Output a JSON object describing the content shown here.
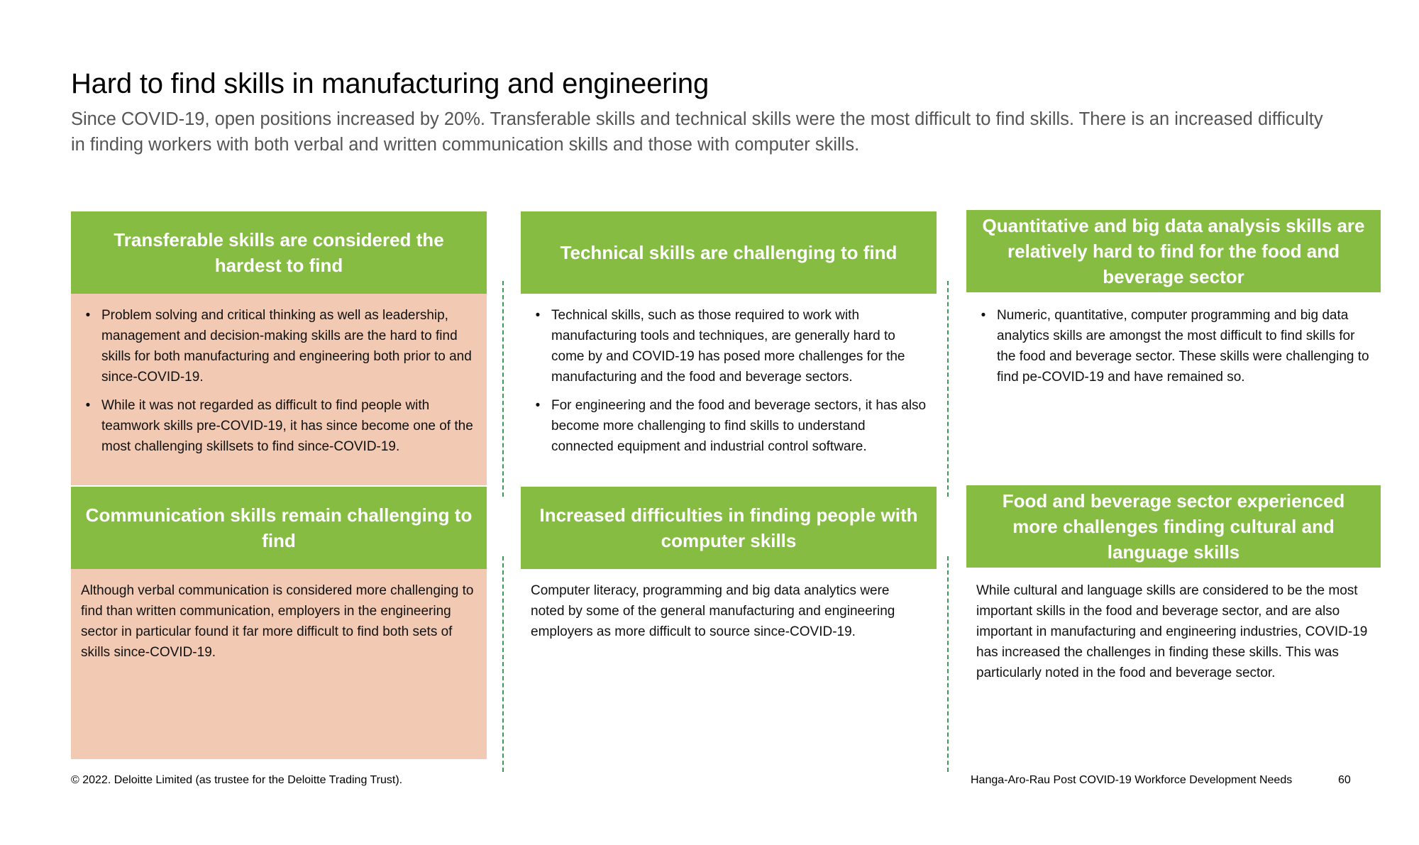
{
  "title": "Hard to find skills in manufacturing and engineering",
  "subtitle": "Since COVID-19, open positions increased by 20%. Transferable skills and technical skills were the most difficult to find skills.  There is an increased difficulty in finding workers with both verbal and written communication skills and those with computer skills.",
  "colors": {
    "header_green": "#86bc42",
    "body_peach": "#f2c9b2",
    "divider_green": "#3d9a56"
  },
  "bullet_glyph": "•",
  "panels": [
    {
      "heading": "Transferable skills are considered the hardest to find",
      "bullets": [
        "Problem solving and critical thinking as well as leadership, management and decision-making skills are the hard to find skills for both manufacturing and engineering both prior to and since-COVID-19.",
        "While it was not regarded as difficult to find people with teamwork skills pre-COVID-19, it has since become one of the most challenging skillsets to find since-COVID-19."
      ]
    },
    {
      "heading": "Technical skills are challenging to find",
      "bullets": [
        "Technical skills, such as those required to work with manufacturing tools and techniques, are generally hard to come by and COVID-19 has posed more challenges for the manufacturing and the food and beverage sectors.",
        "For engineering and the food and beverage sectors, it has also become more challenging to find skills to understand connected equipment and industrial control software."
      ]
    },
    {
      "heading": "Quantitative and big data analysis skills are relatively hard to find for the food and beverage sector",
      "bullets": [
        "Numeric, quantitative, computer programming and big data analytics skills are amongst the most difficult to find skills for the food and beverage sector. These skills were challenging to find pe-COVID-19 and have remained so."
      ]
    },
    {
      "heading": "Communication skills remain challenging to find",
      "text": "Although verbal communication is considered more challenging to find than written communication, employers in the engineering sector in particular found it far more difficult to find both sets of skills since-COVID-19."
    },
    {
      "heading": "Increased difficulties in finding people with computer skills",
      "text": "Computer literacy, programming and big data analytics were noted by some of the general manufacturing and engineering employers as more difficult to source since-COVID-19."
    },
    {
      "heading": "Food and beverage sector experienced more challenges finding cultural and language skills",
      "text": "While cultural and language skills are considered to be the most important skills in the food and beverage sector, and are also important in manufacturing and engineering industries, COVID-19 has increased the challenges in finding these skills. This was particularly noted in the food and beverage sector."
    }
  ],
  "footer": {
    "copyright": "© 2022. Deloitte Limited (as trustee for the Deloitte Trading Trust).",
    "report_title": "Hanga-Aro-Rau Post COVID-19 Workforce Development Needs",
    "page_number": "60"
  }
}
